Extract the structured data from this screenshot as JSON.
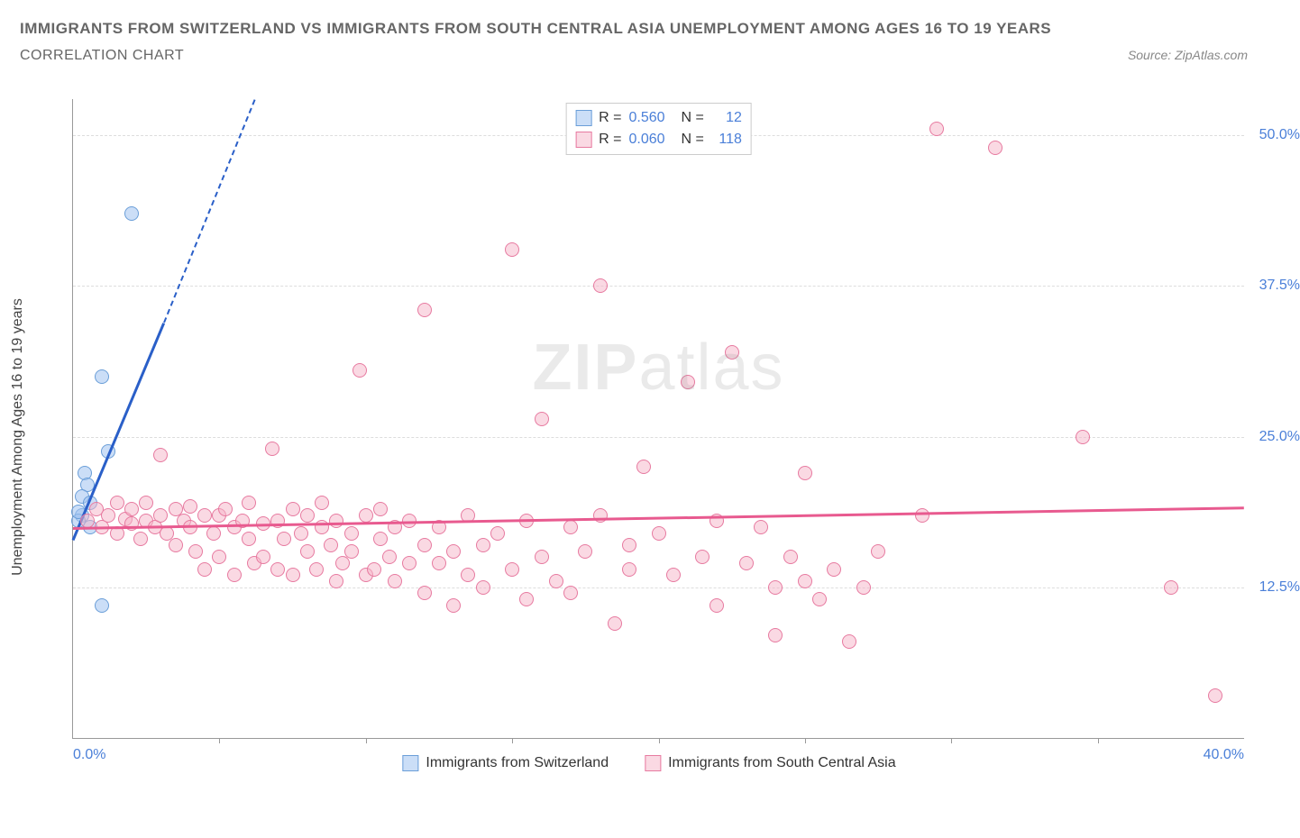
{
  "title": "IMMIGRANTS FROM SWITZERLAND VS IMMIGRANTS FROM SOUTH CENTRAL ASIA UNEMPLOYMENT AMONG AGES 16 TO 19 YEARS",
  "subtitle": "CORRELATION CHART",
  "source": "Source: ZipAtlas.com",
  "y_axis_label": "Unemployment Among Ages 16 to 19 years",
  "watermark_a": "ZIP",
  "watermark_b": "atlas",
  "chart": {
    "type": "scatter",
    "xlim": [
      0,
      40
    ],
    "ylim": [
      0,
      53
    ],
    "yticks": [
      {
        "v": 12.5,
        "label": "12.5%"
      },
      {
        "v": 25.0,
        "label": "25.0%"
      },
      {
        "v": 37.5,
        "label": "37.5%"
      },
      {
        "v": 50.0,
        "label": "50.0%"
      }
    ],
    "xticks_major": [
      0,
      40
    ],
    "xticks_minor": [
      5,
      10,
      15,
      20,
      25,
      30,
      35
    ],
    "xtick_labels": [
      {
        "v": 0,
        "label": "0.0%"
      },
      {
        "v": 40,
        "label": "40.0%"
      }
    ],
    "background_color": "#ffffff",
    "grid_color": "#dddddd",
    "series": [
      {
        "name": "Immigrants from Switzerland",
        "short": "switzerland",
        "marker_fill": "rgba(160,195,240,0.55)",
        "marker_stroke": "#6a9ed8",
        "marker_r": 8,
        "trend_color": "#2a5fc8",
        "R": "0.560",
        "N": "12",
        "trend": {
          "x1": 0,
          "y1": 16.5,
          "x2": 3.1,
          "y2": 34.5,
          "dash_to_x": 6.2,
          "dash_to_y": 53
        },
        "points": [
          [
            0.3,
            18.5
          ],
          [
            0.4,
            22.0
          ],
          [
            0.5,
            21.0
          ],
          [
            0.6,
            17.5
          ],
          [
            1.2,
            23.8
          ],
          [
            1.0,
            30.0
          ],
          [
            0.3,
            20.0
          ],
          [
            0.2,
            18.0
          ],
          [
            0.6,
            19.5
          ],
          [
            2.0,
            43.5
          ],
          [
            1.0,
            11.0
          ],
          [
            0.2,
            18.8
          ]
        ]
      },
      {
        "name": "Immigrants from South Central Asia",
        "short": "south-central-asia",
        "marker_fill": "rgba(245,180,200,0.5)",
        "marker_stroke": "#e77aa0",
        "marker_r": 8,
        "trend_color": "#e85a8f",
        "R": "0.060",
        "N": "118",
        "trend": {
          "x1": 0,
          "y1": 17.5,
          "x2": 40,
          "y2": 19.2
        },
        "points": [
          [
            0.5,
            18.0
          ],
          [
            0.8,
            19.0
          ],
          [
            1.0,
            17.5
          ],
          [
            1.2,
            18.5
          ],
          [
            1.5,
            17.0
          ],
          [
            1.5,
            19.5
          ],
          [
            1.8,
            18.2
          ],
          [
            2.0,
            17.8
          ],
          [
            2.0,
            19.0
          ],
          [
            2.3,
            16.5
          ],
          [
            2.5,
            18.0
          ],
          [
            2.5,
            19.5
          ],
          [
            2.8,
            17.5
          ],
          [
            3.0,
            18.5
          ],
          [
            3.0,
            23.5
          ],
          [
            3.2,
            17.0
          ],
          [
            3.5,
            19.0
          ],
          [
            3.5,
            16.0
          ],
          [
            3.8,
            18.0
          ],
          [
            4.0,
            17.5
          ],
          [
            4.0,
            19.2
          ],
          [
            4.2,
            15.5
          ],
          [
            4.5,
            18.5
          ],
          [
            4.5,
            14.0
          ],
          [
            4.8,
            17.0
          ],
          [
            5.0,
            18.5
          ],
          [
            5.0,
            15.0
          ],
          [
            5.2,
            19.0
          ],
          [
            5.5,
            17.5
          ],
          [
            5.5,
            13.5
          ],
          [
            5.8,
            18.0
          ],
          [
            6.0,
            16.5
          ],
          [
            6.0,
            19.5
          ],
          [
            6.2,
            14.5
          ],
          [
            6.5,
            17.8
          ],
          [
            6.5,
            15.0
          ],
          [
            6.8,
            24.0
          ],
          [
            7.0,
            18.0
          ],
          [
            7.0,
            14.0
          ],
          [
            7.2,
            16.5
          ],
          [
            7.5,
            19.0
          ],
          [
            7.5,
            13.5
          ],
          [
            7.8,
            17.0
          ],
          [
            8.0,
            18.5
          ],
          [
            8.0,
            15.5
          ],
          [
            8.3,
            14.0
          ],
          [
            8.5,
            17.5
          ],
          [
            8.5,
            19.5
          ],
          [
            8.8,
            16.0
          ],
          [
            9.0,
            18.0
          ],
          [
            9.0,
            13.0
          ],
          [
            9.2,
            14.5
          ],
          [
            9.5,
            17.0
          ],
          [
            9.5,
            15.5
          ],
          [
            9.8,
            30.5
          ],
          [
            10.0,
            18.5
          ],
          [
            10.0,
            13.5
          ],
          [
            10.3,
            14.0
          ],
          [
            10.5,
            16.5
          ],
          [
            10.5,
            19.0
          ],
          [
            10.8,
            15.0
          ],
          [
            11.0,
            17.5
          ],
          [
            11.0,
            13.0
          ],
          [
            11.5,
            14.5
          ],
          [
            11.5,
            18.0
          ],
          [
            12.0,
            16.0
          ],
          [
            12.0,
            12.0
          ],
          [
            12.0,
            35.5
          ],
          [
            12.5,
            14.5
          ],
          [
            12.5,
            17.5
          ],
          [
            13.0,
            15.5
          ],
          [
            13.0,
            11.0
          ],
          [
            13.5,
            18.5
          ],
          [
            13.5,
            13.5
          ],
          [
            14.0,
            16.0
          ],
          [
            14.0,
            12.5
          ],
          [
            14.5,
            17.0
          ],
          [
            15.0,
            14.0
          ],
          [
            15.0,
            40.5
          ],
          [
            15.5,
            11.5
          ],
          [
            15.5,
            18.0
          ],
          [
            16.0,
            15.0
          ],
          [
            16.0,
            26.5
          ],
          [
            16.5,
            13.0
          ],
          [
            17.0,
            17.5
          ],
          [
            17.0,
            12.0
          ],
          [
            17.5,
            15.5
          ],
          [
            18.0,
            18.5
          ],
          [
            18.0,
            37.5
          ],
          [
            18.5,
            9.5
          ],
          [
            19.0,
            16.0
          ],
          [
            19.0,
            14.0
          ],
          [
            19.5,
            22.5
          ],
          [
            20.0,
            17.0
          ],
          [
            20.5,
            13.5
          ],
          [
            21.0,
            29.5
          ],
          [
            21.5,
            15.0
          ],
          [
            22.0,
            18.0
          ],
          [
            22.0,
            11.0
          ],
          [
            22.5,
            32.0
          ],
          [
            23.0,
            14.5
          ],
          [
            23.5,
            17.5
          ],
          [
            24.0,
            12.5
          ],
          [
            24.0,
            8.5
          ],
          [
            24.5,
            15.0
          ],
          [
            25.0,
            22.0
          ],
          [
            25.0,
            13.0
          ],
          [
            25.5,
            11.5
          ],
          [
            26.0,
            14.0
          ],
          [
            26.5,
            8.0
          ],
          [
            27.0,
            12.5
          ],
          [
            27.5,
            15.5
          ],
          [
            29.0,
            18.5
          ],
          [
            29.5,
            50.5
          ],
          [
            31.5,
            49.0
          ],
          [
            34.5,
            25.0
          ],
          [
            37.5,
            12.5
          ],
          [
            39.0,
            3.5
          ]
        ]
      }
    ]
  },
  "legend_top": [
    {
      "series": 0,
      "r_label": "R =",
      "n_label": "N ="
    },
    {
      "series": 1,
      "r_label": "R =",
      "n_label": "N ="
    }
  ],
  "legend_bottom": [
    {
      "series": 0
    },
    {
      "series": 1
    }
  ]
}
